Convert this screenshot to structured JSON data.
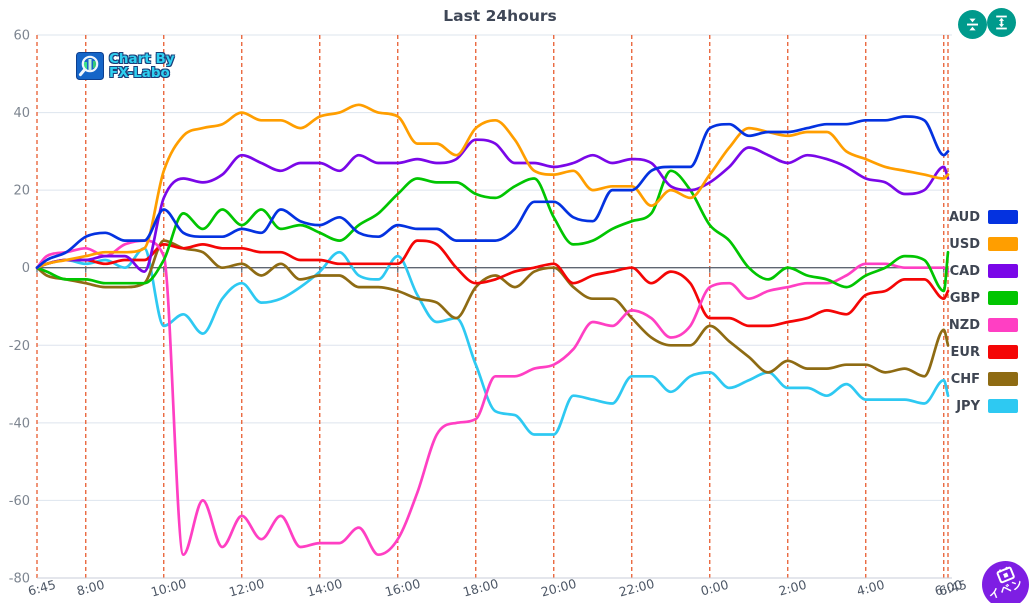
{
  "logo": {
    "line1": "Chart By",
    "line2": "FX-Labo"
  },
  "toolbar": {
    "buttons": [
      {
        "name": "fit-vertical-button",
        "icon": "compress-vertical-icon"
      },
      {
        "name": "scale-vertical-button",
        "icon": "expand-vertical-icon"
      }
    ],
    "button_color": "#009a8c"
  },
  "event_button": {
    "label": "イベン",
    "icon": "calendar-icon",
    "color": "#7e1ee3"
  },
  "colors": {
    "background": "#ffffff",
    "title_text": "#3f4757",
    "grid_dashed": "#e85c30",
    "grid_light": "#dde4ee",
    "zero_line": "#5f6672",
    "y_tick_text": "#7d8590",
    "x_tick_text": "#4d5766",
    "legend_text": "#3e4552"
  },
  "chart_data": {
    "type": "line",
    "title": "Last 24hours",
    "xlabel": "",
    "ylabel": "",
    "grid": {
      "vertical": "dashed-red",
      "horizontal": "light-gray"
    },
    "legend_position": "right",
    "y_axis": {
      "min": -80,
      "max": 60,
      "ticks": [
        60,
        40,
        20,
        0,
        -20,
        -40,
        -60,
        -80
      ]
    },
    "x_axis": {
      "labels": [
        "6:45",
        "8:00",
        "10:00",
        "12:00",
        "14:00",
        "16:00",
        "18:00",
        "20:00",
        "22:00",
        "0:00",
        "2:00",
        "4:00",
        "6:00",
        "6:45"
      ],
      "label_hours": [
        0,
        1.25,
        3.25,
        5.25,
        7.25,
        9.25,
        11.25,
        13.25,
        15.25,
        17.25,
        19.25,
        21.25,
        23.25,
        24
      ]
    },
    "x_hours": [
      0,
      0.25,
      0.75,
      1.25,
      1.75,
      2.25,
      2.75,
      3.25,
      3.75,
      4.25,
      4.75,
      5.25,
      5.75,
      6.25,
      6.75,
      7.25,
      7.75,
      8.25,
      8.75,
      9.25,
      9.75,
      10.25,
      10.75,
      11.25,
      11.75,
      12.25,
      12.75,
      13.25,
      13.75,
      14.25,
      14.75,
      15.25,
      15.75,
      16.25,
      16.75,
      17.25,
      17.75,
      18.25,
      18.75,
      19.25,
      19.75,
      20.25,
      20.75,
      21.25,
      21.75,
      22.25,
      22.75,
      23.25,
      24
    ],
    "series": [
      {
        "name": "AUD",
        "color": "#0432e0",
        "values": [
          0,
          2,
          4,
          8,
          9,
          7,
          7,
          15,
          9,
          8,
          8,
          10,
          9,
          15,
          12,
          11,
          13,
          9,
          8,
          11,
          10,
          10,
          7,
          7,
          7,
          10,
          17,
          17,
          13,
          12,
          20,
          20,
          25,
          26,
          26,
          36,
          37,
          34,
          35,
          35,
          36,
          37,
          37,
          38,
          38,
          39,
          38,
          29,
          30
        ]
      },
      {
        "name": "USD",
        "color": "#ff9e00",
        "values": [
          0,
          1,
          2,
          3,
          4,
          4,
          5,
          25,
          34,
          36,
          37,
          40,
          38,
          38,
          36,
          39,
          40,
          42,
          40,
          39,
          32,
          32,
          29,
          36,
          38,
          33,
          25,
          24,
          25,
          20,
          21,
          21,
          16,
          20,
          18,
          24,
          31,
          36,
          35,
          34,
          35,
          35,
          30,
          28,
          26,
          25,
          24,
          23,
          24
        ]
      },
      {
        "name": "CAD",
        "color": "#7a07e8",
        "values": [
          0,
          1,
          2,
          2,
          3,
          3,
          -1,
          18,
          23,
          22,
          24,
          29,
          27,
          25,
          27,
          27,
          25,
          29,
          27,
          27,
          28,
          27,
          28,
          33,
          32,
          27,
          27,
          26,
          27,
          29,
          27,
          28,
          27,
          21,
          20,
          22,
          26,
          31,
          29,
          27,
          29,
          28,
          26,
          23,
          22,
          19,
          20,
          26,
          23
        ]
      },
      {
        "name": "GBP",
        "color": "#01c501",
        "values": [
          0,
          -1,
          -3,
          -3,
          -4,
          -4,
          -4,
          2,
          14,
          10,
          15,
          11,
          15,
          10,
          11,
          9,
          7,
          11,
          14,
          19,
          23,
          22,
          22,
          19,
          18,
          21,
          23,
          13,
          6,
          7,
          10,
          12,
          14,
          25,
          20,
          11,
          7,
          0,
          -3,
          0,
          -2,
          -3,
          -5,
          -2,
          0,
          3,
          2,
          -6,
          4
        ]
      },
      {
        "name": "NZD",
        "color": "#ff3fc3",
        "values": [
          0,
          3,
          4,
          5,
          3,
          6,
          7,
          3,
          -74,
          -60,
          -72,
          -64,
          -70,
          -64,
          -72,
          -71,
          -71,
          -67,
          -74,
          -70,
          -58,
          -43,
          -40,
          -39,
          -28,
          -28,
          -26,
          -25,
          -21,
          -14,
          -15,
          -11,
          -13,
          -18,
          -15,
          -5,
          -4,
          -8,
          -6,
          -5,
          -4,
          -4,
          -2,
          1,
          1,
          0,
          0,
          0,
          -1
        ]
      },
      {
        "name": "EUR",
        "color": "#f40606",
        "values": [
          0,
          1,
          2,
          2,
          1,
          2,
          2,
          6,
          5,
          6,
          5,
          5,
          4,
          4,
          2,
          2,
          1,
          1,
          1,
          1,
          7,
          6,
          0,
          -4,
          -3,
          -1,
          0,
          1,
          -4,
          -2,
          -1,
          0,
          -4,
          -1,
          -4,
          -13,
          -13,
          -15,
          -15,
          -14,
          -13,
          -11,
          -12,
          -7,
          -6,
          -3,
          -3,
          -8,
          -6
        ]
      },
      {
        "name": "CHF",
        "color": "#8e6b13",
        "values": [
          0,
          -2,
          -3,
          -4,
          -5,
          -5,
          -4,
          7,
          5,
          4,
          0,
          1,
          -2,
          1,
          -3,
          -2,
          -2,
          -5,
          -5,
          -6,
          -8,
          -9,
          -13,
          -5,
          -2,
          -5,
          -1,
          0,
          -5,
          -8,
          -8,
          -13,
          -18,
          -20,
          -20,
          -15,
          -19,
          -23,
          -27,
          -24,
          -26,
          -26,
          -25,
          -25,
          -27,
          -26,
          -28,
          -16,
          -20
        ]
      },
      {
        "name": "JPY",
        "color": "#2ec9f2",
        "values": [
          0,
          1,
          2,
          1,
          2,
          0,
          5,
          -15,
          -12,
          -17,
          -8,
          -4,
          -9,
          -8,
          -5,
          -1,
          4,
          -2,
          -3,
          3,
          -7,
          -14,
          -13,
          -25,
          -37,
          -38,
          -43,
          -43,
          -33,
          -34,
          -35,
          -28,
          -28,
          -32,
          -28,
          -27,
          -31,
          -29,
          -27,
          -31,
          -31,
          -33,
          -30,
          -34,
          -34,
          -34,
          -35,
          -29,
          -33
        ]
      }
    ]
  }
}
